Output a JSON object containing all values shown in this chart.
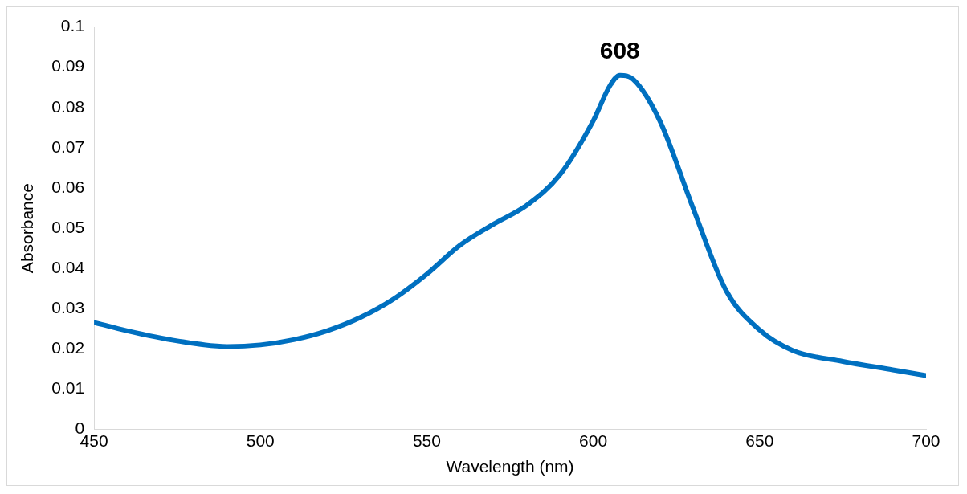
{
  "chart_data": {
    "type": "line",
    "xlabel": "Wavelength (nm)",
    "ylabel": "Absorbance",
    "x": [
      450,
      460,
      475,
      490,
      500,
      510,
      520,
      530,
      540,
      550,
      560,
      570,
      580,
      590,
      600,
      605,
      608,
      612,
      620,
      630,
      640,
      650,
      660,
      675,
      690,
      700
    ],
    "series": [
      {
        "color": "#0070c0",
        "values": [
          0.0266,
          0.0245,
          0.022,
          0.0206,
          0.021,
          0.0223,
          0.0245,
          0.0278,
          0.0324,
          0.0386,
          0.0458,
          0.051,
          0.0557,
          0.0633,
          0.0767,
          0.0854,
          0.088,
          0.087,
          0.0767,
          0.055,
          0.0344,
          0.0247,
          0.0196,
          0.0169,
          0.0148,
          0.0134
        ]
      }
    ],
    "xlim": [
      450,
      700
    ],
    "xticks": [
      450,
      500,
      550,
      600,
      650,
      700
    ],
    "ylim": [
      0,
      0.1
    ],
    "yticks": [
      0,
      0.01,
      0.02,
      0.03,
      0.04,
      0.05,
      0.06,
      0.07,
      0.08,
      0.09,
      0.1
    ],
    "annotations": [
      {
        "text": "608",
        "x": 608,
        "y": 0.088
      }
    ],
    "grid": false,
    "legend": false,
    "marker": "none",
    "line_style": "solid"
  }
}
